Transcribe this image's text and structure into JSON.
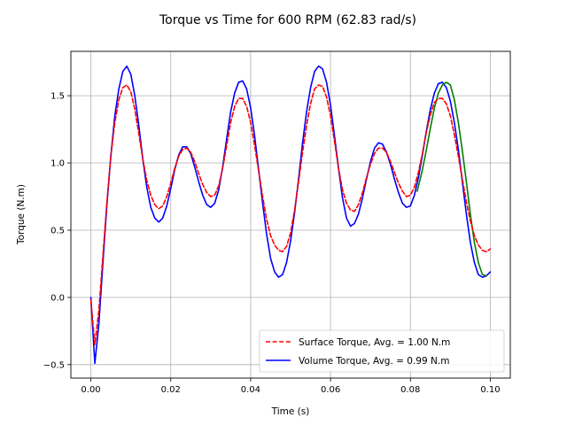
{
  "chart_data": {
    "type": "line",
    "title": "Torque vs Time for 600 RPM (62.83 rad/s)",
    "xlabel": "Time (s)",
    "ylabel": "Torque (N.m)",
    "xlim": [
      -0.005,
      0.105
    ],
    "ylim": [
      -0.6,
      1.83
    ],
    "xticks": [
      0.0,
      0.02,
      0.04,
      0.06,
      0.08,
      0.1
    ],
    "xtick_labels": [
      "0.00",
      "0.02",
      "0.04",
      "0.06",
      "0.08",
      "0.10"
    ],
    "yticks": [
      -0.5,
      0.0,
      0.5,
      1.0,
      1.5
    ],
    "ytick_labels": [
      "−0.5",
      "0.0",
      "0.5",
      "1.0",
      "1.5"
    ],
    "grid": true,
    "legend_position": "lower-right",
    "series": [
      {
        "name": "Surface Torque, Avg. = 1.00 N.m",
        "color": "#ff0000",
        "style": "dashed",
        "x": [
          0.0,
          0.001,
          0.002,
          0.003,
          0.004,
          0.005,
          0.006,
          0.007,
          0.008,
          0.009,
          0.01,
          0.011,
          0.012,
          0.013,
          0.014,
          0.015,
          0.016,
          0.017,
          0.018,
          0.019,
          0.02,
          0.021,
          0.022,
          0.023,
          0.024,
          0.025,
          0.026,
          0.027,
          0.028,
          0.029,
          0.03,
          0.031,
          0.032,
          0.033,
          0.034,
          0.035,
          0.036,
          0.037,
          0.038,
          0.039,
          0.04,
          0.041,
          0.042,
          0.043,
          0.044,
          0.045,
          0.046,
          0.047,
          0.048,
          0.049,
          0.05,
          0.051,
          0.052,
          0.053,
          0.054,
          0.055,
          0.056,
          0.057,
          0.058,
          0.059,
          0.06,
          0.061,
          0.062,
          0.063,
          0.064,
          0.065,
          0.066,
          0.067,
          0.068,
          0.069,
          0.07,
          0.071,
          0.072,
          0.073,
          0.074,
          0.075,
          0.076,
          0.077,
          0.078,
          0.079,
          0.08,
          0.081,
          0.082,
          0.083,
          0.084,
          0.085,
          0.086,
          0.087,
          0.088,
          0.089,
          0.09,
          0.091,
          0.092,
          0.093,
          0.094,
          0.095,
          0.096,
          0.097,
          0.098,
          0.099,
          0.1
        ],
        "y": [
          -0.02,
          -0.35,
          -0.1,
          0.3,
          0.7,
          1.05,
          1.3,
          1.47,
          1.56,
          1.58,
          1.53,
          1.4,
          1.22,
          1.03,
          0.87,
          0.76,
          0.69,
          0.66,
          0.68,
          0.75,
          0.85,
          0.96,
          1.05,
          1.1,
          1.11,
          1.08,
          1.01,
          0.92,
          0.84,
          0.78,
          0.75,
          0.76,
          0.83,
          0.96,
          1.13,
          1.3,
          1.42,
          1.48,
          1.48,
          1.42,
          1.3,
          1.13,
          0.94,
          0.75,
          0.58,
          0.46,
          0.39,
          0.35,
          0.34,
          0.38,
          0.48,
          0.65,
          0.86,
          1.08,
          1.28,
          1.44,
          1.55,
          1.58,
          1.57,
          1.49,
          1.35,
          1.16,
          0.96,
          0.8,
          0.7,
          0.65,
          0.64,
          0.69,
          0.78,
          0.89,
          0.99,
          1.07,
          1.11,
          1.11,
          1.08,
          1.01,
          0.93,
          0.85,
          0.79,
          0.75,
          0.76,
          0.82,
          0.93,
          1.07,
          1.23,
          1.36,
          1.45,
          1.48,
          1.48,
          1.44,
          1.35,
          1.21,
          1.05,
          0.88,
          0.71,
          0.57,
          0.46,
          0.39,
          0.35,
          0.34,
          0.36
        ]
      },
      {
        "name": "Volume Torque, Avg. = 0.99 N.m",
        "color": "#0000ff",
        "style": "solid",
        "x": [
          0.0,
          0.001,
          0.002,
          0.003,
          0.004,
          0.005,
          0.006,
          0.007,
          0.008,
          0.009,
          0.01,
          0.011,
          0.012,
          0.013,
          0.014,
          0.015,
          0.016,
          0.017,
          0.018,
          0.019,
          0.02,
          0.021,
          0.022,
          0.023,
          0.024,
          0.025,
          0.026,
          0.027,
          0.028,
          0.029,
          0.03,
          0.031,
          0.032,
          0.033,
          0.034,
          0.035,
          0.036,
          0.037,
          0.038,
          0.039,
          0.04,
          0.041,
          0.042,
          0.043,
          0.044,
          0.045,
          0.046,
          0.047,
          0.048,
          0.049,
          0.05,
          0.051,
          0.052,
          0.053,
          0.054,
          0.055,
          0.056,
          0.057,
          0.058,
          0.059,
          0.06,
          0.061,
          0.062,
          0.063,
          0.064,
          0.065,
          0.066,
          0.067,
          0.068,
          0.069,
          0.07,
          0.071,
          0.072,
          0.073,
          0.074,
          0.075,
          0.076,
          0.077,
          0.078,
          0.079,
          0.08,
          0.081,
          0.082,
          0.083,
          0.084,
          0.085,
          0.086,
          0.087,
          0.088,
          0.089,
          0.09,
          0.091,
          0.092,
          0.093,
          0.094,
          0.095,
          0.096,
          0.097,
          0.098,
          0.099,
          0.1
        ],
        "y": [
          0.0,
          -0.49,
          -0.2,
          0.25,
          0.68,
          1.05,
          1.35,
          1.55,
          1.68,
          1.72,
          1.66,
          1.5,
          1.28,
          1.03,
          0.82,
          0.67,
          0.59,
          0.56,
          0.59,
          0.68,
          0.81,
          0.95,
          1.06,
          1.12,
          1.12,
          1.07,
          0.97,
          0.86,
          0.76,
          0.69,
          0.67,
          0.7,
          0.8,
          0.97,
          1.18,
          1.38,
          1.52,
          1.6,
          1.61,
          1.55,
          1.41,
          1.2,
          0.95,
          0.7,
          0.47,
          0.29,
          0.19,
          0.15,
          0.17,
          0.26,
          0.42,
          0.63,
          0.88,
          1.15,
          1.38,
          1.56,
          1.68,
          1.72,
          1.7,
          1.6,
          1.43,
          1.2,
          0.96,
          0.74,
          0.59,
          0.53,
          0.55,
          0.62,
          0.74,
          0.88,
          1.01,
          1.11,
          1.15,
          1.14,
          1.08,
          0.99,
          0.88,
          0.78,
          0.7,
          0.67,
          0.68,
          0.76,
          0.89,
          1.06,
          1.24,
          1.4,
          1.52,
          1.59,
          1.6,
          1.56,
          1.46,
          1.3,
          1.1,
          0.86,
          0.62,
          0.41,
          0.26,
          0.17,
          0.15,
          0.16,
          0.19
        ]
      },
      {
        "name": "",
        "color": "#008000",
        "style": "solid",
        "x": [
          0.0817,
          0.083,
          0.084,
          0.085,
          0.086,
          0.087,
          0.088,
          0.089,
          0.09,
          0.091,
          0.092,
          0.093,
          0.094,
          0.095,
          0.096,
          0.097,
          0.098,
          0.099
        ],
        "y": [
          0.79,
          0.95,
          1.1,
          1.26,
          1.41,
          1.52,
          1.58,
          1.6,
          1.58,
          1.47,
          1.3,
          1.09,
          0.86,
          0.62,
          0.41,
          0.26,
          0.17,
          0.16
        ]
      }
    ]
  }
}
